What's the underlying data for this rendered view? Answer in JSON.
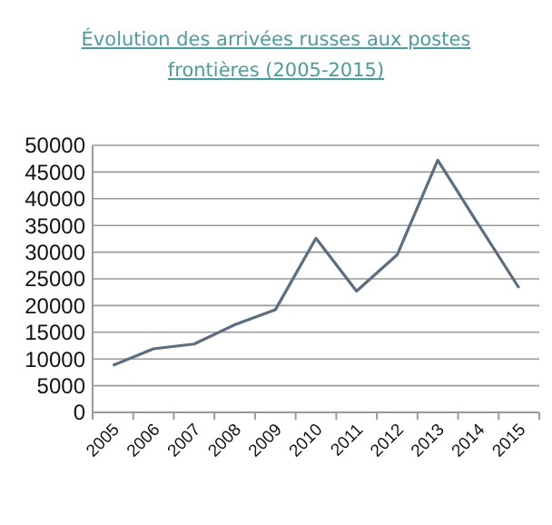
{
  "chart_data": {
    "type": "line",
    "title": "Évolution des arrivées russes aux postes frontières (2005-2015)",
    "categories": [
      "2005",
      "2006",
      "2007",
      "2008",
      "2009",
      "2010",
      "2011",
      "2012",
      "2013",
      "2014",
      "2015"
    ],
    "series": [
      {
        "color": "#5b6e80",
        "values": [
          8800,
          11900,
          12800,
          16400,
          19200,
          32600,
          22700,
          29500,
          47200,
          35200,
          23300
        ]
      }
    ],
    "ylim": [
      0,
      50000
    ],
    "yticks": [
      0,
      5000,
      10000,
      15000,
      20000,
      25000,
      30000,
      35000,
      40000,
      45000,
      50000
    ],
    "grid": "y",
    "marker": "none",
    "line_style": "solid"
  }
}
